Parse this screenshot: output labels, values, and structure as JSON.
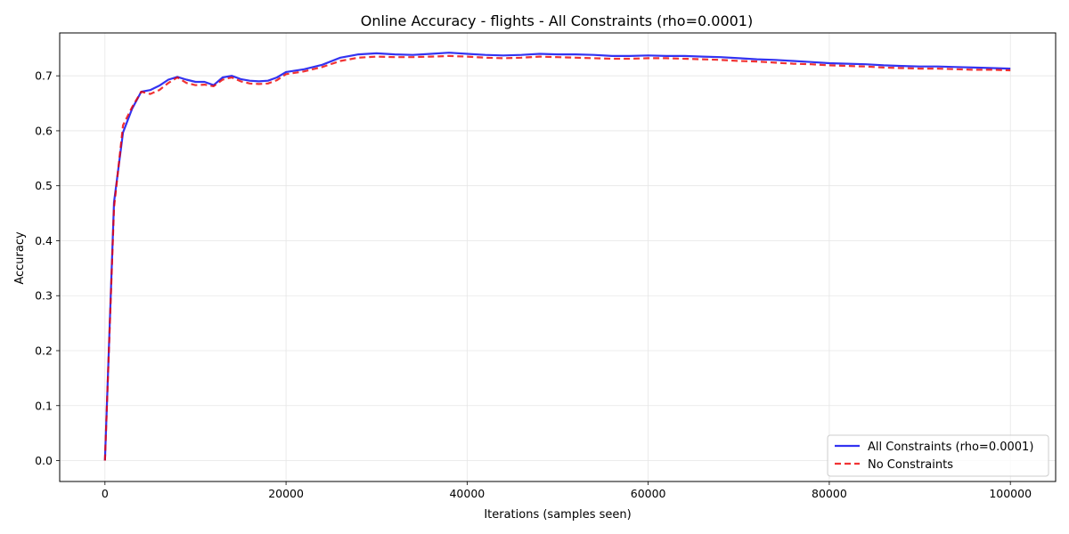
{
  "chart_data": {
    "type": "line",
    "title": "Online Accuracy - flights - All Constraints (rho=0.0001)",
    "xlabel": "Iterations (samples seen)",
    "ylabel": "Accuracy",
    "xlim": [
      -5000,
      105000
    ],
    "ylim": [
      -0.038,
      0.778
    ],
    "xticks": [
      0,
      20000,
      40000,
      60000,
      80000,
      100000
    ],
    "yticks": [
      0.0,
      0.1,
      0.2,
      0.3,
      0.4,
      0.5,
      0.6,
      0.7
    ],
    "grid": true,
    "legend_position": "bottom-right",
    "series": [
      {
        "name": "All Constraints (rho=0.0001)",
        "color": "#0000ee",
        "style": "solid",
        "x": [
          0,
          1000,
          2000,
          3000,
          4000,
          5000,
          6000,
          7000,
          8000,
          9000,
          10000,
          11000,
          12000,
          13000,
          14000,
          15000,
          16000,
          17000,
          18000,
          19000,
          20000,
          22000,
          24000,
          26000,
          28000,
          30000,
          32000,
          34000,
          36000,
          38000,
          40000,
          42000,
          44000,
          46000,
          48000,
          50000,
          52000,
          54000,
          56000,
          58000,
          60000,
          62000,
          64000,
          66000,
          68000,
          70000,
          72000,
          74000,
          76000,
          78000,
          80000,
          82000,
          84000,
          86000,
          88000,
          90000,
          92000,
          94000,
          96000,
          98000,
          100000
        ],
        "values": [
          0.0,
          0.47,
          0.597,
          0.64,
          0.671,
          0.674,
          0.682,
          0.693,
          0.698,
          0.693,
          0.689,
          0.689,
          0.683,
          0.697,
          0.7,
          0.694,
          0.691,
          0.69,
          0.691,
          0.697,
          0.707,
          0.712,
          0.72,
          0.733,
          0.739,
          0.741,
          0.739,
          0.738,
          0.74,
          0.742,
          0.74,
          0.738,
          0.737,
          0.738,
          0.74,
          0.739,
          0.739,
          0.738,
          0.736,
          0.736,
          0.737,
          0.736,
          0.736,
          0.735,
          0.734,
          0.732,
          0.73,
          0.729,
          0.727,
          0.725,
          0.723,
          0.722,
          0.721,
          0.719,
          0.718,
          0.717,
          0.717,
          0.716,
          0.715,
          0.714,
          0.713
        ]
      },
      {
        "name": "No Constraints",
        "color": "#ee0000",
        "style": "dashed",
        "x": [
          0,
          1000,
          2000,
          3000,
          4000,
          5000,
          6000,
          7000,
          8000,
          9000,
          10000,
          11000,
          12000,
          13000,
          14000,
          15000,
          16000,
          17000,
          18000,
          19000,
          20000,
          22000,
          24000,
          26000,
          28000,
          30000,
          32000,
          34000,
          36000,
          38000,
          40000,
          42000,
          44000,
          46000,
          48000,
          50000,
          52000,
          54000,
          56000,
          58000,
          60000,
          62000,
          64000,
          66000,
          68000,
          70000,
          72000,
          74000,
          76000,
          78000,
          80000,
          82000,
          84000,
          86000,
          88000,
          90000,
          92000,
          94000,
          96000,
          98000,
          100000
        ],
        "values": [
          0.0,
          0.46,
          0.61,
          0.643,
          0.671,
          0.667,
          0.674,
          0.687,
          0.697,
          0.687,
          0.683,
          0.684,
          0.681,
          0.693,
          0.697,
          0.69,
          0.686,
          0.685,
          0.686,
          0.692,
          0.703,
          0.708,
          0.716,
          0.727,
          0.733,
          0.735,
          0.734,
          0.734,
          0.735,
          0.736,
          0.735,
          0.733,
          0.732,
          0.733,
          0.735,
          0.734,
          0.733,
          0.732,
          0.731,
          0.731,
          0.732,
          0.732,
          0.731,
          0.73,
          0.729,
          0.727,
          0.726,
          0.724,
          0.722,
          0.721,
          0.719,
          0.718,
          0.717,
          0.715,
          0.714,
          0.713,
          0.713,
          0.712,
          0.711,
          0.711,
          0.71
        ]
      }
    ]
  }
}
